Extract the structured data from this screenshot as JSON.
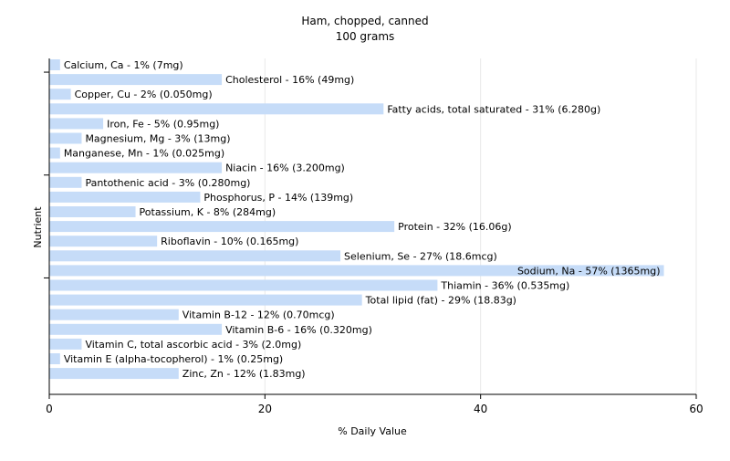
{
  "chart_data": {
    "type": "bar",
    "orientation": "horizontal",
    "title": "Ham, chopped, canned",
    "subtitle": "100 grams",
    "xlabel": "% Daily Value",
    "ylabel": "Nutrient",
    "xlim": [
      0,
      60
    ],
    "xticks": [
      "0",
      "20",
      "40",
      "60"
    ],
    "grid": true,
    "bar_color": "#c6dcf8",
    "categories": [
      "Calcium, Ca",
      "Cholesterol",
      "Copper, Cu",
      "Fatty acids, total saturated",
      "Iron, Fe",
      "Magnesium, Mg",
      "Manganese, Mn",
      "Niacin",
      "Pantothenic acid",
      "Phosphorus, P",
      "Potassium, K",
      "Protein",
      "Riboflavin",
      "Selenium, Se",
      "Sodium, Na",
      "Thiamin",
      "Total lipid (fat)",
      "Vitamin B-12",
      "Vitamin B-6",
      "Vitamin C, total ascorbic acid",
      "Vitamin E (alpha-tocopherol)",
      "Zinc, Zn"
    ],
    "values": [
      1,
      16,
      2,
      31,
      5,
      3,
      1,
      16,
      3,
      14,
      8,
      32,
      10,
      27,
      57,
      36,
      29,
      12,
      16,
      3,
      1,
      12
    ],
    "labels": [
      "Calcium, Ca - 1% (7mg)",
      "Cholesterol - 16% (49mg)",
      "Copper, Cu - 2% (0.050mg)",
      "Fatty acids, total saturated - 31% (6.280g)",
      "Iron, Fe - 5% (0.95mg)",
      "Magnesium, Mg - 3% (13mg)",
      "Manganese, Mn - 1% (0.025mg)",
      "Niacin - 16% (3.200mg)",
      "Pantothenic acid - 3% (0.280mg)",
      "Phosphorus, P - 14% (139mg)",
      "Potassium, K - 8% (284mg)",
      "Protein - 32% (16.06g)",
      "Riboflavin - 10% (0.165mg)",
      "Selenium, Se - 27% (18.6mcg)",
      "Sodium, Na - 57% (1365mg)",
      "Thiamin - 36% (0.535mg)",
      "Total lipid (fat) - 29% (18.83g)",
      "Vitamin B-12 - 12% (0.70mcg)",
      "Vitamin B-6 - 16% (0.320mg)",
      "Vitamin C, total ascorbic acid - 3% (2.0mg)",
      "Vitamin E (alpha-tocopherol) - 1% (0.25mg)",
      "Zinc, Zn - 12% (1.83mg)"
    ]
  }
}
